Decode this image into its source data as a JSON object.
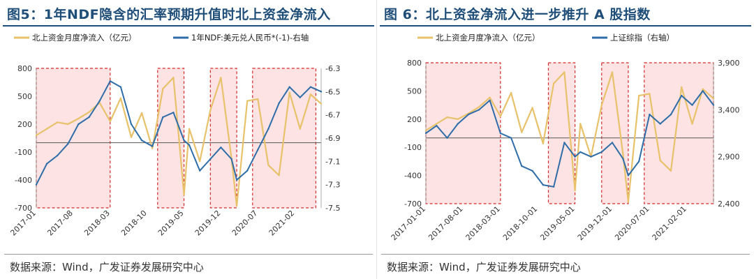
{
  "left": {
    "title": "图5：1年NDF隐含的汇率预期升值时北上资金净流入",
    "source": "数据来源：Wind，广发证券发展研究中心",
    "legend": [
      "北上资金月度净流入（亿元）",
      "1年NDF:美元兑人民币*(-1)-右轴"
    ]
  },
  "right": {
    "title": "图 6：北上资金净流入进一步推升 A 股指数",
    "source": "数据来源：Wind，广发证券发展研究中心",
    "legend": [
      "北上资金月度净流入（亿元）",
      "上证综指（右轴）"
    ]
  },
  "colors": {
    "gold": "#e8c26a",
    "blue": "#2e6da8",
    "box": "#d42a2a",
    "boxfill": "#fde3e3",
    "title": "#1f4e79"
  },
  "chart_data": [
    {
      "type": "line",
      "x_ticks": [
        "2017-01",
        "2017-08",
        "2018-03",
        "2018-10",
        "2019-05",
        "2019-12",
        "2020-07",
        "2021-02"
      ],
      "x_range": [
        "2017-01",
        "2021-07"
      ],
      "ylim_left": [
        -700,
        800
      ],
      "yticks_left": [
        "800",
        "500",
        "200",
        "-100",
        "-400",
        "-700"
      ],
      "ylim_right": [
        -7.5,
        -6.3
      ],
      "yticks_right": [
        "-6.3",
        "-6.5",
        "-6.7",
        "-6.9",
        "-7.1",
        "-7.3",
        "-7.5"
      ],
      "series": [
        {
          "name": "北上资金月度净流入（亿元）",
          "axis": "left",
          "x": [
            "2017-01",
            "2017-03",
            "2017-05",
            "2017-07",
            "2017-09",
            "2017-11",
            "2018-01",
            "2018-03",
            "2018-05",
            "2018-07",
            "2018-09",
            "2018-11",
            "2019-01",
            "2019-03",
            "2019-05",
            "2019-06",
            "2019-08",
            "2019-10",
            "2019-12",
            "2020-02",
            "2020-03",
            "2020-05",
            "2020-07",
            "2020-09",
            "2020-11",
            "2021-01",
            "2021-03",
            "2021-05",
            "2021-07"
          ],
          "values": [
            80,
            150,
            220,
            200,
            260,
            330,
            430,
            230,
            480,
            60,
            320,
            -60,
            580,
            700,
            -560,
            150,
            -200,
            350,
            700,
            -170,
            -680,
            450,
            470,
            -240,
            -350,
            540,
            150,
            520,
            420
          ]
        },
        {
          "name": "1年NDF:美元兑人民币*(-1)-右轴",
          "axis": "right",
          "x": [
            "2017-01",
            "2017-03",
            "2017-05",
            "2017-07",
            "2017-09",
            "2017-11",
            "2018-01",
            "2018-03",
            "2018-05",
            "2018-07",
            "2018-09",
            "2018-11",
            "2019-01",
            "2019-03",
            "2019-05",
            "2019-06",
            "2019-08",
            "2019-10",
            "2019-12",
            "2020-02",
            "2020-03",
            "2020-05",
            "2020-07",
            "2020-09",
            "2020-11",
            "2021-01",
            "2021-03",
            "2021-05",
            "2021-07"
          ],
          "values": [
            -7.3,
            -7.12,
            -7.05,
            -6.95,
            -6.78,
            -6.72,
            -6.58,
            -6.41,
            -6.46,
            -6.78,
            -6.92,
            -6.97,
            -6.72,
            -6.68,
            -6.92,
            -6.96,
            -7.18,
            -7.08,
            -6.98,
            -7.08,
            -7.26,
            -7.18,
            -7.0,
            -6.82,
            -6.6,
            -6.46,
            -6.55,
            -6.46,
            -6.5
          ]
        }
      ],
      "highlight_ranges": [
        [
          "2017-01",
          "2018-03"
        ],
        [
          "2018-12",
          "2019-05"
        ],
        [
          "2019-10",
          "2020-03"
        ],
        [
          "2020-06",
          "2021-06"
        ]
      ]
    },
    {
      "type": "line",
      "x_ticks": [
        "2017-01-01",
        "2017-08-01",
        "2018-03-01",
        "2018-10-01",
        "2019-05-01",
        "2019-12-01",
        "2020-07-01",
        "2021-02-01"
      ],
      "x_range": [
        "2017-01-01",
        "2021-07-01"
      ],
      "ylim_left": [
        -700,
        800
      ],
      "yticks_left": [
        "800",
        "500",
        "200",
        "-100",
        "-400",
        "-700"
      ],
      "ylim_right": [
        2400,
        3900
      ],
      "yticks_right": [
        "3,900",
        "3,400",
        "2,900",
        "2,400"
      ],
      "series": [
        {
          "name": "北上资金月度净流入（亿元）",
          "axis": "left",
          "x": [
            "2017-01-01",
            "2017-03-01",
            "2017-05-01",
            "2017-07-01",
            "2017-09-01",
            "2017-11-01",
            "2018-01-01",
            "2018-03-01",
            "2018-05-01",
            "2018-07-01",
            "2018-09-01",
            "2018-11-01",
            "2019-01-01",
            "2019-03-01",
            "2019-05-01",
            "2019-06-01",
            "2019-08-01",
            "2019-10-01",
            "2019-12-01",
            "2020-02-01",
            "2020-03-01",
            "2020-05-01",
            "2020-07-01",
            "2020-09-01",
            "2020-11-01",
            "2021-01-01",
            "2021-03-01",
            "2021-05-01",
            "2021-07-01"
          ],
          "values": [
            80,
            150,
            220,
            200,
            260,
            330,
            430,
            230,
            480,
            60,
            320,
            -60,
            580,
            700,
            -560,
            150,
            -200,
            350,
            700,
            -170,
            -680,
            450,
            470,
            -240,
            -350,
            540,
            150,
            520,
            420
          ]
        },
        {
          "name": "上证综指（右轴）",
          "axis": "right",
          "x": [
            "2017-01-01",
            "2017-03-01",
            "2017-05-01",
            "2017-07-01",
            "2017-09-01",
            "2017-11-01",
            "2018-01-01",
            "2018-03-01",
            "2018-05-01",
            "2018-07-01",
            "2018-09-01",
            "2018-11-01",
            "2019-01-01",
            "2019-03-01",
            "2019-05-01",
            "2019-06-01",
            "2019-08-01",
            "2019-10-01",
            "2019-12-01",
            "2020-02-01",
            "2020-03-01",
            "2020-05-01",
            "2020-07-01",
            "2020-09-01",
            "2020-11-01",
            "2021-01-01",
            "2021-03-01",
            "2021-05-01",
            "2021-07-01"
          ],
          "values": [
            3150,
            3230,
            3100,
            3250,
            3350,
            3400,
            3500,
            3150,
            3100,
            2800,
            2750,
            2600,
            2580,
            3050,
            2900,
            2950,
            2900,
            2950,
            3050,
            2880,
            2700,
            2850,
            3350,
            3250,
            3350,
            3550,
            3450,
            3600,
            3450
          ]
        }
      ],
      "highlight_ranges": [
        [
          "2017-01-01",
          "2018-03-01"
        ],
        [
          "2018-12-01",
          "2019-05-01"
        ],
        [
          "2019-10-01",
          "2020-03-01"
        ],
        [
          "2020-06-01",
          "2021-07-01"
        ]
      ]
    }
  ]
}
